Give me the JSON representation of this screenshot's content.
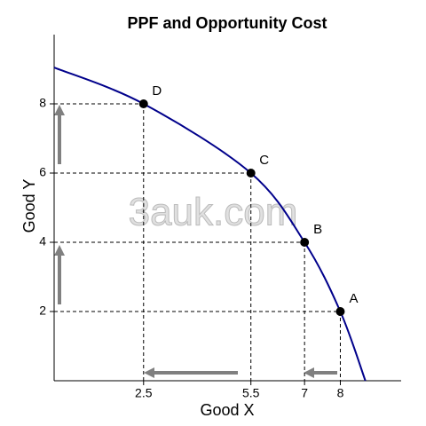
{
  "chart_data": {
    "type": "ppf",
    "title": "PPF and Opportunity Cost",
    "x_label": "Good X",
    "y_label": "Good Y",
    "watermark": "3auk.com",
    "xlim": [
      0,
      9.7
    ],
    "ylim": [
      0,
      10
    ],
    "xticks": [
      2.5,
      5.5,
      7,
      8
    ],
    "yticks": [
      2,
      4,
      6,
      8
    ],
    "curve": {
      "color": "#00008b",
      "x": [
        0,
        2.5,
        5.5,
        7,
        8,
        8.7
      ],
      "y": [
        9.05,
        8,
        6,
        4,
        2,
        0
      ]
    },
    "points": {
      "color": "#000000",
      "labels": [
        "A",
        "B",
        "C",
        "D"
      ],
      "x": [
        8,
        7,
        5.5,
        2.5
      ],
      "y": [
        2,
        4,
        6,
        8
      ]
    }
  }
}
